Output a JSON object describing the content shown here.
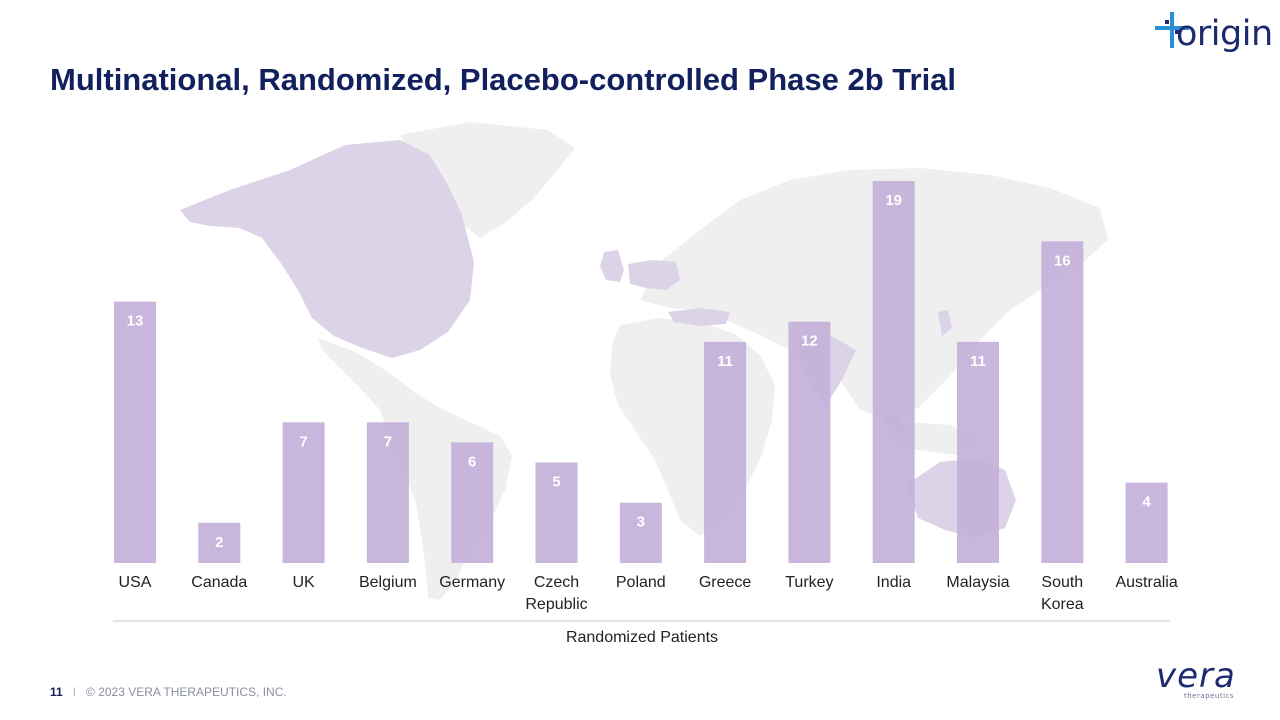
{
  "slide": {
    "title": "Multinational, Randomized, Placebo-controlled Phase 2b Trial",
    "page_number": "11",
    "separator": "I",
    "copyright": "© 2023 VERA THERAPEUTICS, INC.",
    "logo_top_right": "origin",
    "logo_bottom_right": "vera",
    "logo_bottom_right_sub": "therapeutics"
  },
  "colors": {
    "title": "#13205e",
    "bar": "#c3b0d9",
    "bar_label": "#ffffff",
    "map_land": "#efefef",
    "map_highlight": "#ddd3e8",
    "axis_line": "#c8c8c8",
    "logo_accent": "#2a8fd6"
  },
  "chart_data": {
    "type": "bar",
    "title": "",
    "xlabel": "Randomized Patients",
    "ylabel": "",
    "categories": [
      "USA",
      "Canada",
      "UK",
      "Belgium",
      "Germany",
      "Czech Republic",
      "Poland",
      "Greece",
      "Turkey",
      "India",
      "Malaysia",
      "South Korea",
      "Australia"
    ],
    "category_lines": [
      [
        "USA"
      ],
      [
        "Canada"
      ],
      [
        "UK"
      ],
      [
        "Belgium"
      ],
      [
        "Germany"
      ],
      [
        "Czech",
        "Republic"
      ],
      [
        "Poland"
      ],
      [
        "Greece"
      ],
      [
        "Turkey"
      ],
      [
        "India"
      ],
      [
        "Malaysia"
      ],
      [
        "South",
        "Korea"
      ],
      [
        "Australia"
      ]
    ],
    "values": [
      13,
      2,
      7,
      7,
      6,
      5,
      3,
      11,
      12,
      19,
      11,
      16,
      4
    ],
    "ylim": [
      0,
      19
    ],
    "grid": false,
    "legend": false,
    "data_labels": true,
    "background": "world map with participating countries highlighted"
  }
}
